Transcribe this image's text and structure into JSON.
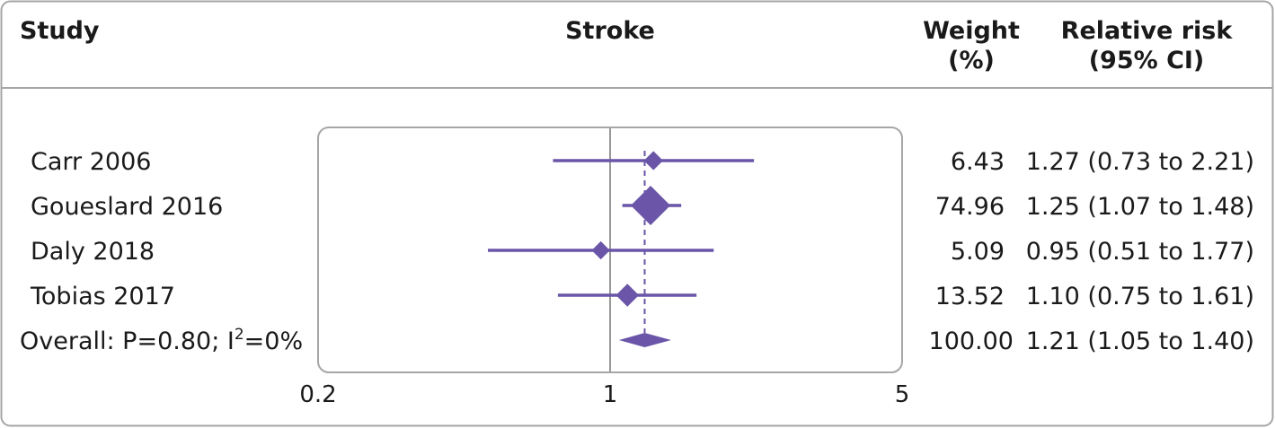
{
  "header": {
    "study": "Study",
    "outcome": "Stroke",
    "weight_line1": "Weight",
    "weight_line2": "(%)",
    "rr_line1": "Relative risk",
    "rr_line2": "(95% CI)"
  },
  "colors": {
    "marker": "#6a55a8",
    "reference_line": "#999999",
    "frame": "#a6a6a6",
    "text": "#1a1a1a"
  },
  "chart_data": {
    "type": "forest",
    "title": "Stroke",
    "x_scale": "log",
    "xlim": [
      0.2,
      5
    ],
    "xticks": [
      0.2,
      1,
      5
    ],
    "xtick_labels": [
      "0.2",
      "1",
      "5"
    ],
    "reference_value": 1,
    "studies": [
      {
        "label": "Carr 2006",
        "rr": 1.27,
        "lo": 0.73,
        "hi": 2.21,
        "weight": 6.43,
        "weight_text": "6.43",
        "rr_text": "1.27 (0.73 to 2.21)"
      },
      {
        "label": "Goueslard 2016",
        "rr": 1.25,
        "lo": 1.07,
        "hi": 1.48,
        "weight": 74.96,
        "weight_text": "74.96",
        "rr_text": "1.25 (1.07 to 1.48)"
      },
      {
        "label": "Daly 2018",
        "rr": 0.95,
        "lo": 0.51,
        "hi": 1.77,
        "weight": 5.09,
        "weight_text": "5.09",
        "rr_text": "0.95 (0.51 to 1.77)"
      },
      {
        "label": "Tobias 2017",
        "rr": 1.1,
        "lo": 0.75,
        "hi": 1.61,
        "weight": 13.52,
        "weight_text": "13.52",
        "rr_text": "1.10 (0.75 to 1.61)"
      }
    ],
    "overall": {
      "label_prefix": "Overall: P=0.80; I",
      "label_sup": "2",
      "label_suffix": "=0%",
      "rr": 1.21,
      "lo": 1.05,
      "hi": 1.4,
      "weight_text": "100.00",
      "rr_text": "1.21 (1.05 to 1.40)"
    }
  }
}
